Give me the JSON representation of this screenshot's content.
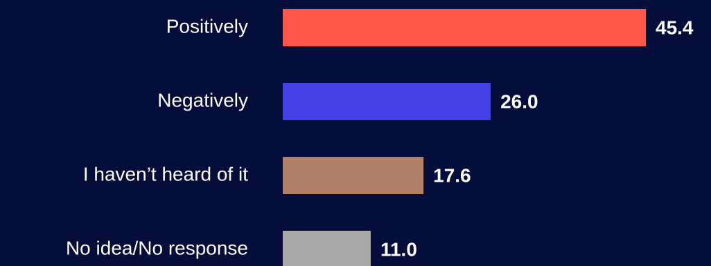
{
  "background": "#050d3a",
  "chart_data": {
    "type": "bar",
    "orientation": "horizontal",
    "categories": [
      "Positively",
      "Negatively",
      "I haven’t heard of it",
      "No idea/No response"
    ],
    "values": [
      45.4,
      26.0,
      17.6,
      11.0
    ],
    "value_labels": [
      "45.4",
      "26.0",
      "17.6",
      "11.0"
    ],
    "colors": [
      "#ff564a",
      "#4340e6",
      "#b08068",
      "#a9a9a9"
    ],
    "xlim": [
      0,
      45.4
    ],
    "grid": false,
    "legend": "none"
  }
}
